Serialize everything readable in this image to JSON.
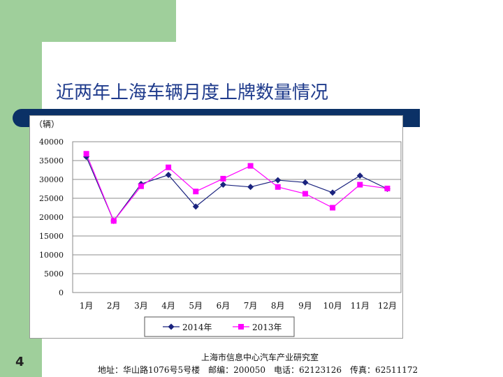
{
  "slide": {
    "title": "近两年上海车辆月度上牌数量情况",
    "page_number": "4",
    "footer_org": "上海市信息中心汽车产业研究室",
    "footer_contact": "地址：华山路1076号5号楼　邮编：200050　电话：62123126　传真：62511172"
  },
  "colors": {
    "background_green": "#9fcf9b",
    "title_blue": "#1f3b8c",
    "header_bar_navy": "#0b3166",
    "series_2014": "#1a237e",
    "series_2013": "#ff00ff"
  },
  "chart_data": {
    "type": "line",
    "title": "",
    "xlabel": "",
    "ylabel": "（辆）",
    "categories": [
      "1月",
      "2月",
      "3月",
      "4月",
      "5月",
      "6月",
      "7月",
      "8月",
      "9月",
      "10月",
      "11月",
      "12月"
    ],
    "y_ticks": [
      "0",
      "5000",
      "10000",
      "15000",
      "20000",
      "25000",
      "30000",
      "35000",
      "40000"
    ],
    "ylim": [
      0,
      40000
    ],
    "grid": true,
    "legend_position": "bottom",
    "series": [
      {
        "name": "2014年",
        "marker": "diamond",
        "values": [
          36000,
          19000,
          28800,
          31200,
          22800,
          28600,
          28000,
          29800,
          29200,
          26500,
          31000,
          27500
        ]
      },
      {
        "name": "2013年",
        "marker": "square",
        "values": [
          36800,
          19000,
          28200,
          33200,
          26800,
          30200,
          33600,
          28000,
          26200,
          22500,
          28600,
          27600
        ]
      }
    ]
  }
}
